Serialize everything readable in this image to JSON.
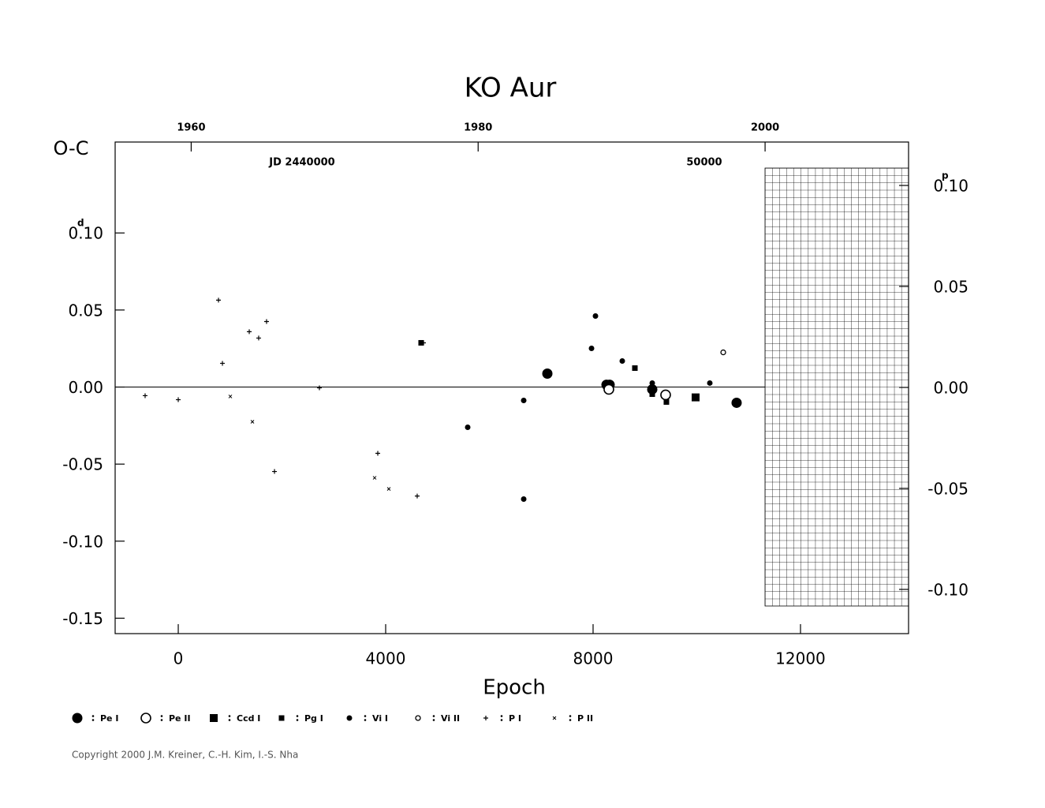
{
  "chart_data": {
    "type": "scatter",
    "title": "KO Aur",
    "y_label": "O-C",
    "x_label": "Epoch",
    "y_unit": "d",
    "y2_unit": "p",
    "annotations": [
      "JD 2440000",
      "50000"
    ],
    "copyright": "Copyright 2000 J.M. Kreiner, C.-H. Kim, I.-S. Nha",
    "xlim": [
      -1217,
      14084
    ],
    "xticks": [
      0,
      4000,
      8000,
      12000
    ],
    "ylim": [
      -0.16,
      0.159
    ],
    "yticks": [
      {
        "value": -0.15,
        "label": "-0.15"
      },
      {
        "value": -0.1,
        "label": "-0.10"
      },
      {
        "value": -0.05,
        "label": "-0.05"
      },
      {
        "value": 0,
        "label": "0.00"
      },
      {
        "value": 0.05,
        "label": "0.05"
      },
      {
        "value": 0.1,
        "label": "0.10"
      }
    ],
    "y2lim": [
      -0.1219,
      0.1215
    ],
    "y2ticks": [
      {
        "value": -0.1,
        "label": "-0.10"
      },
      {
        "value": -0.05,
        "label": "-0.05"
      },
      {
        "value": 0,
        "label": "0.00"
      },
      {
        "value": 0.05,
        "label": "0.05"
      },
      {
        "value": 0.1,
        "label": "0.10"
      }
    ],
    "top_xlim": [
      1954.7,
      2010.0
    ],
    "top_xticks": [
      1960,
      1980,
      2000
    ],
    "series": [
      {
        "name": "Pe I",
        "marker": "bigdisc",
        "color": "#000000",
        "x": [
          7118,
          8259,
          8319,
          9141,
          10768
        ],
        "values": [
          0.0087,
          0.0015,
          0.0015,
          -0.0015,
          -0.0102
        ]
      },
      {
        "name": "Pe II",
        "marker": "bigring",
        "color": "#000000",
        "x": [
          8304,
          9399
        ],
        "values": [
          -0.0015,
          -0.0051
        ]
      },
      {
        "name": "Ccd I",
        "marker": "bigsquare",
        "color": "#000000",
        "x": [
          9977
        ],
        "values": [
          -0.0067
        ]
      },
      {
        "name": "Pg I",
        "marker": "square",
        "color": "#000000",
        "x": [
          4684,
          8806,
          9141,
          9414
        ],
        "values": [
          0.0287,
          0.0123,
          -0.0046,
          -0.0097
        ]
      },
      {
        "name": "Vi I",
        "marker": "disc",
        "color": "#000000",
        "x": [
          5582,
          6662,
          6662,
          7970,
          8046,
          8563,
          9141,
          10251
        ],
        "values": [
          -0.0261,
          -0.0087,
          -0.0727,
          0.0251,
          0.0461,
          0.0169,
          0.0026,
          0.0026
        ]
      },
      {
        "name": "Vi II",
        "marker": "ring",
        "color": "#000000",
        "x": [
          10510
        ],
        "values": [
          0.0225
        ]
      },
      {
        "name": "P I",
        "marker": "plus",
        "color": "#000000",
        "x": [
          -639,
          0,
          776,
          852,
          1369,
          1551,
          1703,
          1856,
          2722,
          3848,
          4608,
          4730
        ],
        "values": [
          -0.0056,
          -0.0082,
          0.0564,
          0.0154,
          0.0359,
          0.0318,
          0.0425,
          -0.0548,
          -0.0005,
          -0.043,
          -0.0707,
          0.0287
        ]
      },
      {
        "name": "P II",
        "marker": "cross",
        "color": "#000000",
        "x": [
          1004,
          1430,
          3787,
          4061
        ],
        "values": [
          -0.0061,
          -0.0225,
          -0.0589,
          -0.0661
        ]
      }
    ]
  }
}
